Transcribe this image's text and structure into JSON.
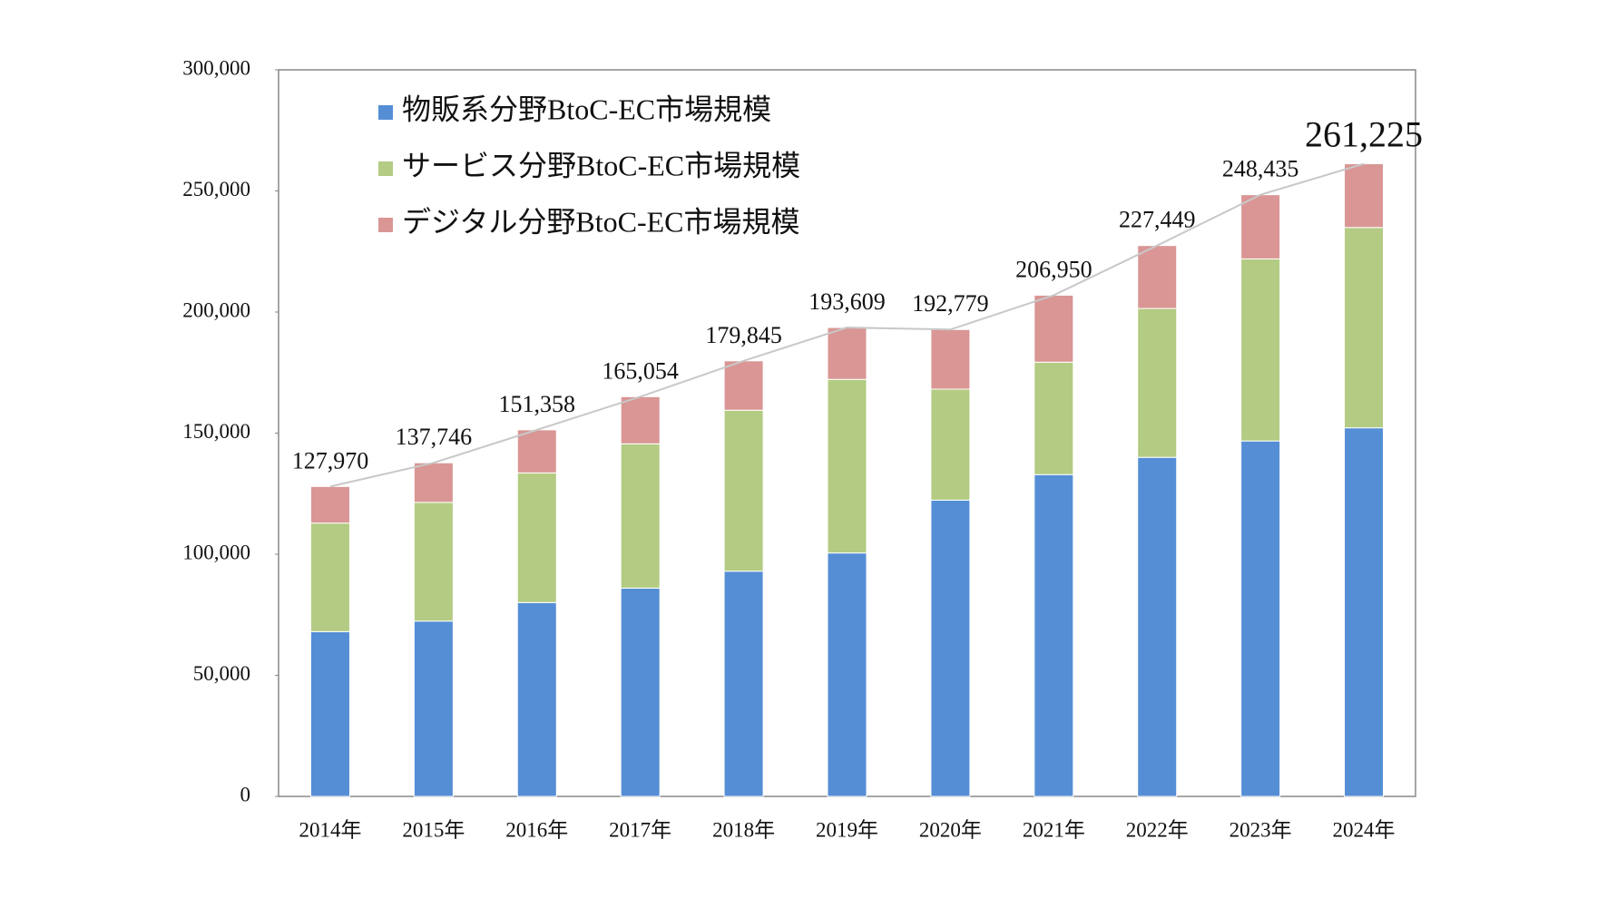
{
  "chart_data": {
    "type": "stacked-bar",
    "categories": [
      "2014年",
      "2015年",
      "2016年",
      "2017年",
      "2018年",
      "2019年",
      "2020年",
      "2021年",
      "2022年",
      "2023年",
      "2024年"
    ],
    "series": [
      {
        "name": "物販系分野BtoC-EC市場規模",
        "color": "#558ed5",
        "values": [
          68043,
          72398,
          80043,
          86008,
          92992,
          100515,
          122333,
          132865,
          139997,
          146760,
          152194
        ]
      },
      {
        "name": "サービス分野BtoC-EC市場規模",
        "color": "#b3cb82",
        "values": [
          44816,
          49014,
          53532,
          59568,
          66471,
          71672,
          45832,
          46424,
          61477,
          75169,
          82715
        ]
      },
      {
        "name": "デジタル分野BtoC-EC市場規模",
        "color": "#d99694",
        "values": [
          15111,
          16334,
          17782,
          19478,
          20382,
          21422,
          24614,
          27661,
          25974,
          26506,
          26316
        ]
      }
    ],
    "totals": {
      "color": "#c8c8c8",
      "values": [
        127970,
        137746,
        151358,
        165054,
        179845,
        193609,
        192779,
        206950,
        227449,
        248435,
        261225
      ],
      "value_labels": [
        "127,970",
        "137,746",
        "151,358",
        "165,054",
        "179,845",
        "193,609",
        "192,779",
        "206,950",
        "227,449",
        "248,435",
        "261,225"
      ]
    },
    "ylim": [
      0,
      300000
    ],
    "yticks": [
      0,
      {
        "value": 50000,
        "label": "50,000"
      },
      {
        "value": 100000,
        "label": "100,000"
      },
      {
        "value": 150000,
        "label": "150,000"
      },
      {
        "value": 200000,
        "label": "200,000"
      },
      {
        "value": 250000,
        "label": "250,000"
      },
      {
        "value": 300000,
        "label": "300,000"
      }
    ],
    "legend": "upper-left"
  }
}
